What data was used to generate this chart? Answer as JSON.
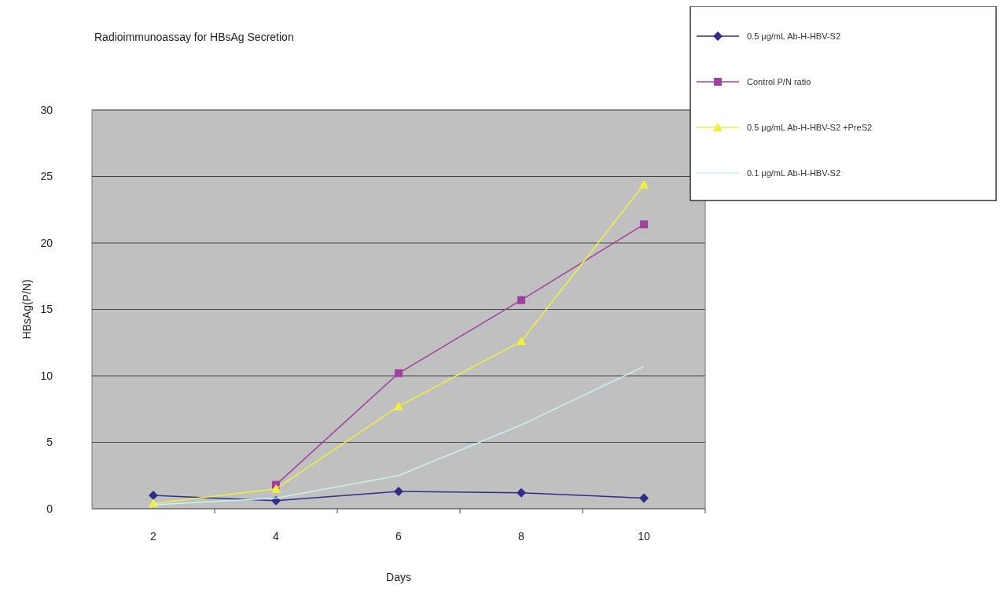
{
  "chart_data": {
    "type": "line",
    "title": "Radioimmunoassay  for HBsAg Secretion",
    "xlabel": "Days",
    "ylabel": "HBsAg(P/N)",
    "categories": [
      "2",
      "4",
      "6",
      "8",
      "10"
    ],
    "series": [
      {
        "name": "0.5 μg/mL Ab-H-HBV-S2",
        "color": "#2e2e8a",
        "marker": "diamond",
        "values": [
          1.0,
          0.6,
          1.3,
          1.2,
          0.8
        ]
      },
      {
        "name": "Control P/N ratio",
        "color": "#a040a0",
        "marker": "square",
        "values": [
          null,
          1.8,
          10.2,
          15.7,
          21.4
        ]
      },
      {
        "name": "0.5 μg/mL Ab-H-HBV-S2 +PreS2",
        "color": "#f0f040",
        "marker": "triangle",
        "values": [
          0.4,
          1.5,
          7.7,
          12.6,
          24.4
        ]
      },
      {
        "name": "0.1 μg/mL Ab-H-HBV-S2",
        "color": "#c8f0f0",
        "marker": "none",
        "values": [
          0.3,
          0.8,
          2.5,
          6.3,
          10.7
        ]
      }
    ],
    "ylim": [
      0,
      30
    ],
    "yticks": [
      0,
      5,
      10,
      15,
      20,
      25,
      30
    ],
    "grid": "y",
    "legend": "top right",
    "line_style": "solid"
  }
}
